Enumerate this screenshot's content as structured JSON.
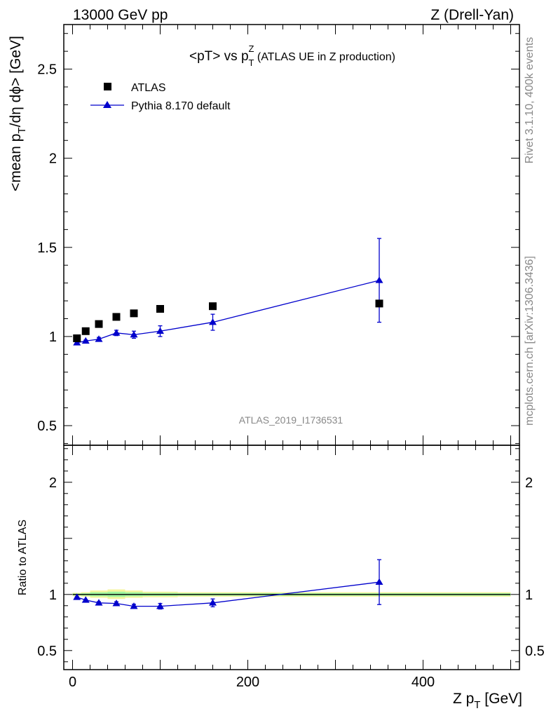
{
  "header": {
    "left": "13000 GeV pp",
    "right": "Z (Drell-Yan)"
  },
  "side_labels": {
    "rivet": "Rivet 3.1.10,  400k events",
    "mcplots": "mcplots.cern.ch [arXiv:1306.3436]"
  },
  "watermark": "ATLAS_2019_I1736531",
  "colors": {
    "pythia": "#0000cc",
    "data": "#000000",
    "band_green": "#9ef59e",
    "band_yellow": "#f5f59e"
  },
  "chart_data": [
    {
      "type": "scatter",
      "panel": "main",
      "title_parts": {
        "a": "<pT> vs p",
        "sub": "T",
        "sup": "Z",
        "b": " (ATLAS UE in Z production)"
      },
      "ylabel_parts": {
        "a": "<mean p",
        "sub": "T",
        "b": "/dη dϕ> [GeV]"
      },
      "ylim": [
        0.39,
        2.75
      ],
      "yticks": [
        0.5,
        1,
        1.5,
        2,
        2.5
      ],
      "ytick_labels": [
        "0.5",
        "1",
        "1.5",
        "2",
        "2.5"
      ],
      "xlim": [
        -10,
        510
      ],
      "legend": {
        "position": "top-left",
        "entries": [
          {
            "name": "ATLAS",
            "marker": "square"
          },
          {
            "name": "Pythia 8.170 default",
            "marker": "triangle-line"
          }
        ]
      },
      "series": [
        {
          "name": "ATLAS",
          "x": [
            5,
            15,
            30,
            50,
            70,
            100,
            160,
            350
          ],
          "y": [
            0.99,
            1.03,
            1.07,
            1.11,
            1.13,
            1.155,
            1.17,
            1.185
          ]
        },
        {
          "name": "Pythia 8.170 default",
          "x": [
            5,
            15,
            30,
            50,
            70,
            100,
            160,
            350
          ],
          "y": [
            0.965,
            0.975,
            0.985,
            1.02,
            1.01,
            1.03,
            1.08,
            1.315
          ],
          "yerr": [
            0.005,
            0.005,
            0.01,
            0.015,
            0.02,
            0.03,
            0.045,
            0.235
          ]
        }
      ]
    },
    {
      "type": "line",
      "panel": "ratio",
      "ylabel": "Ratio to ATLAS",
      "xlabel_parts": {
        "a": "Z p",
        "sub": "T",
        "b": " [GeV]"
      },
      "ylim": [
        0.33,
        2.33
      ],
      "yticks": [
        0.5,
        1,
        2
      ],
      "ytick_labels": [
        "0.5",
        "1",
        "2"
      ],
      "xlim": [
        -10,
        510
      ],
      "xticks": [
        0,
        200,
        400
      ],
      "xtick_labels": [
        "0",
        "200",
        "400"
      ],
      "reference": 1,
      "bands": [
        {
          "x0": 0,
          "x1": 10,
          "low": 0.985,
          "high": 1.015
        },
        {
          "x0": 10,
          "x1": 20,
          "low": 0.98,
          "high": 1.02
        },
        {
          "x0": 20,
          "x1": 40,
          "low": 0.97,
          "high": 1.035
        },
        {
          "x0": 40,
          "x1": 60,
          "low": 0.96,
          "high": 1.045
        },
        {
          "x0": 60,
          "x1": 80,
          "low": 0.97,
          "high": 1.035
        },
        {
          "x0": 80,
          "x1": 120,
          "low": 0.975,
          "high": 1.025
        },
        {
          "x0": 120,
          "x1": 200,
          "low": 0.98,
          "high": 1.02
        },
        {
          "x0": 200,
          "x1": 500,
          "low": 0.98,
          "high": 1.02
        }
      ],
      "series": [
        {
          "name": "Pythia 8.170 default",
          "x": [
            5,
            15,
            30,
            50,
            70,
            100,
            160,
            350
          ],
          "y": [
            0.975,
            0.95,
            0.925,
            0.92,
            0.895,
            0.895,
            0.925,
            1.11
          ],
          "yerr": [
            0.005,
            0.005,
            0.01,
            0.015,
            0.018,
            0.025,
            0.035,
            0.2
          ]
        }
      ]
    }
  ]
}
